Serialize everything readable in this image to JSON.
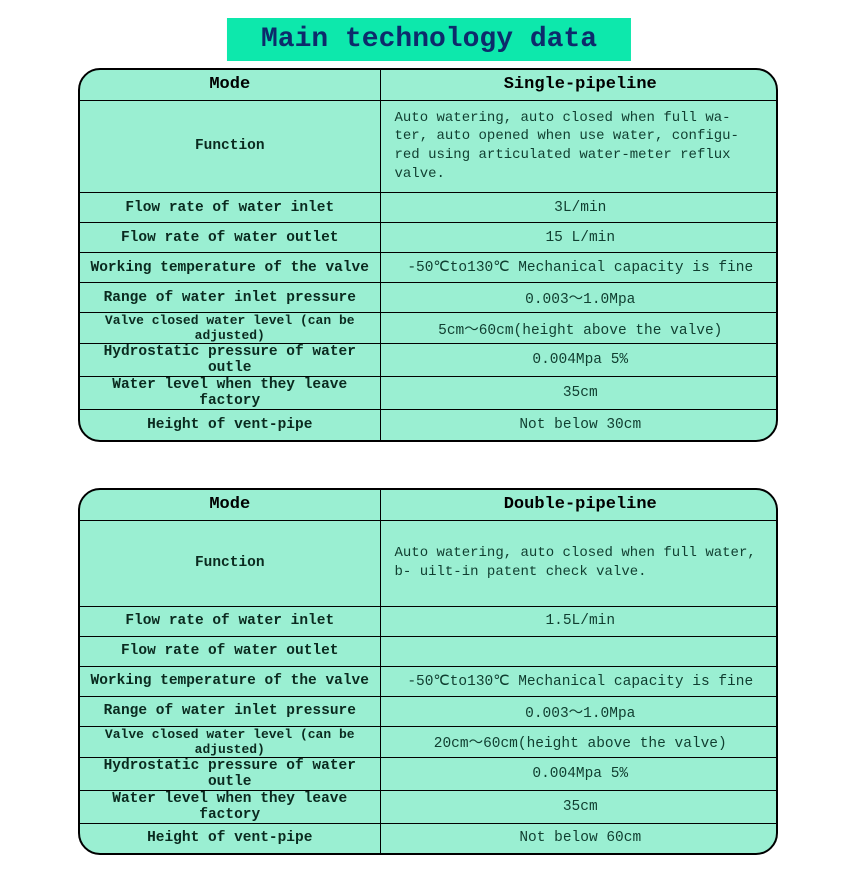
{
  "title": "Main technology data",
  "colors": {
    "banner_bg": "#0de8ac",
    "banner_text": "#0d2b6b",
    "table_bg": "#9aefd2",
    "border": "#000000",
    "cell_text": "#003a2a"
  },
  "tables": [
    {
      "mode_label": "Mode",
      "mode_value": "Single-pipeline",
      "rows": [
        {
          "label": "Function",
          "value": "Auto watering, auto closed when full wa-\nter, auto opened when use water, configu-\nred using articulated water-meter reflux\nvalve.",
          "func": true
        },
        {
          "label": "Flow rate of water inlet",
          "value": "3L/min"
        },
        {
          "label": "Flow rate of water outlet",
          "value": "15 L/min"
        },
        {
          "label": "Working temperature of the valve",
          "value": "-50℃to130℃ Mechanical capacity is fine"
        },
        {
          "label": "Range of water inlet pressure",
          "value": "0.003～1.0Mpa"
        },
        {
          "label": "Valve closed water level (can be adjusted)",
          "value": "5cm～60cm(height above the valve)",
          "small": true
        },
        {
          "label": "Hydrostatic pressure of water outle",
          "value": "0.004Mpa  5%"
        },
        {
          "label": "Water level when they leave factory",
          "value": "35cm"
        },
        {
          "label": "Height of vent-pipe",
          "value": "Not below 30cm"
        }
      ]
    },
    {
      "mode_label": "Mode",
      "mode_value": "Double-pipeline",
      "rows": [
        {
          "label": "Function",
          "value": "Auto watering, auto closed when full water, b-\nuilt-in patent check valve.",
          "func": true
        },
        {
          "label": "Flow rate of water inlet",
          "value": "1.5L/min"
        },
        {
          "label": "Flow rate of water outlet",
          "value": ""
        },
        {
          "label": "Working temperature of the valve",
          "value": "-50℃to130℃ Mechanical capacity is fine"
        },
        {
          "label": "Range of water inlet pressure",
          "value": "0.003～1.0Mpa"
        },
        {
          "label": "Valve closed water level (can be adjusted)",
          "value": "20cm～60cm(height above the valve)",
          "small": true
        },
        {
          "label": "Hydrostatic pressure of water outle",
          "value": "0.004Mpa  5%"
        },
        {
          "label": "Water level when they leave factory",
          "value": "35cm"
        },
        {
          "label": "Height of vent-pipe",
          "value": "Not below 60cm"
        }
      ]
    }
  ]
}
